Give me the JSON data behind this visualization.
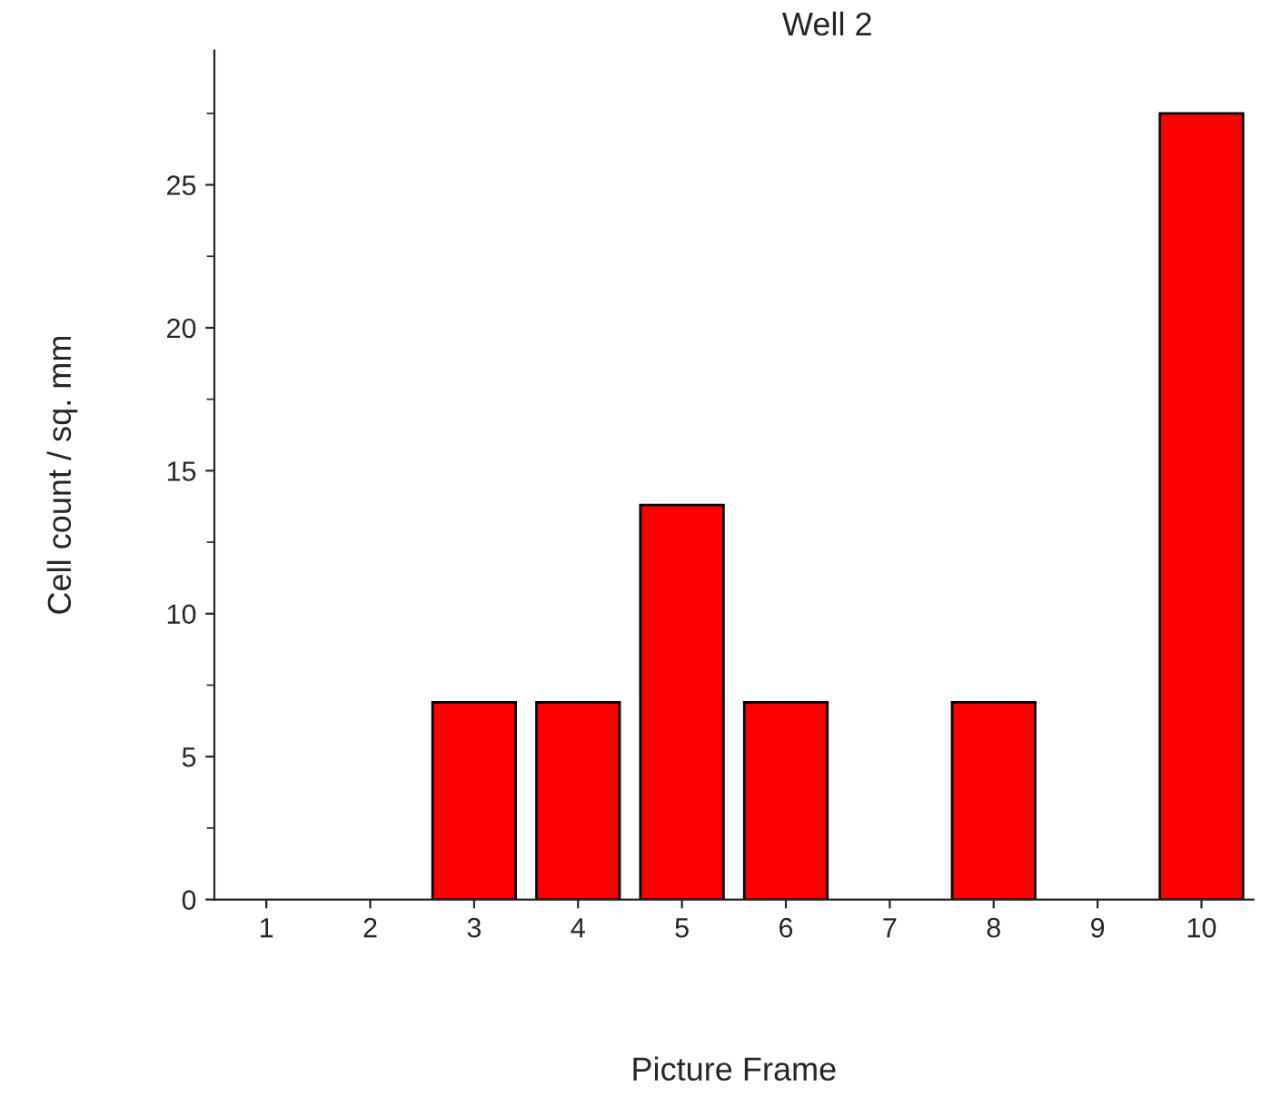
{
  "chart_data": {
    "type": "bar",
    "title": "Well 2",
    "xlabel": "Picture Frame",
    "ylabel": "Cell count / sq. mm",
    "categories": [
      "1",
      "2",
      "3",
      "4",
      "5",
      "6",
      "7",
      "8",
      "9",
      "10"
    ],
    "values": [
      0,
      0,
      6.9,
      6.9,
      13.8,
      6.9,
      0,
      6.9,
      0,
      27.5
    ],
    "color": "#ff0000",
    "ylim": [
      0,
      29.7
    ],
    "yticks": [
      0,
      5,
      10,
      15,
      20,
      25
    ],
    "grid": false
  }
}
